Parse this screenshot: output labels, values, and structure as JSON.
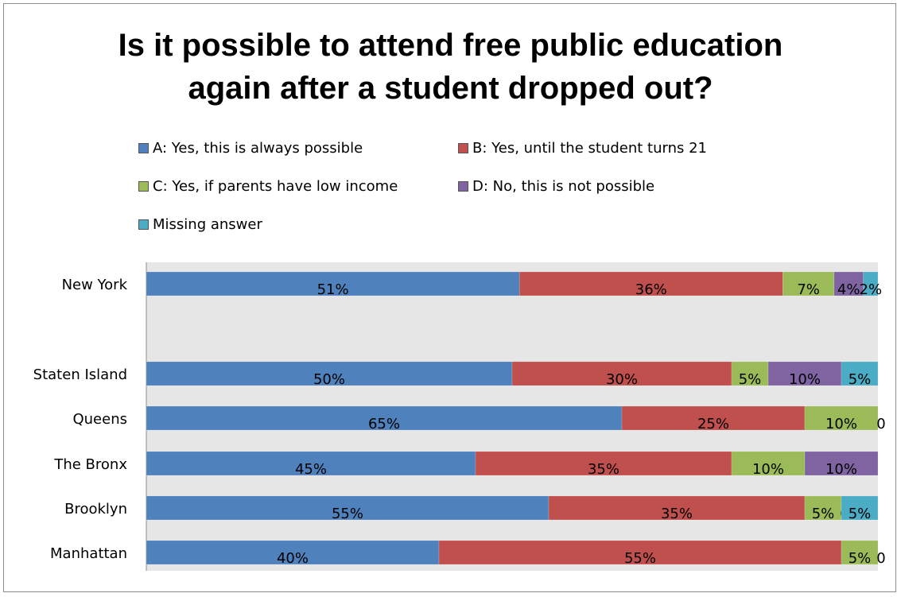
{
  "chart_data": {
    "type": "bar",
    "orientation": "horizontal",
    "stacked": true,
    "normalized_100_percent": true,
    "title": "Is it possible to attend free public education again after a student dropped out?",
    "title_lines": [
      "Is it possible to attend free public education",
      "again after a student dropped out?"
    ],
    "categories": [
      "New York",
      "Staten Island",
      "Queens",
      "The Bronx",
      "Brooklyn",
      "Manhattan"
    ],
    "category_gap_after": [
      "New York"
    ],
    "xlim": [
      0,
      100
    ],
    "grid": false,
    "legend_position": "top",
    "series": [
      {
        "name": "A: Yes, this is always possible",
        "color": "#4f81bd",
        "values": [
          51,
          50,
          65,
          45,
          55,
          40
        ],
        "labels": [
          "51%",
          "50%",
          "65%",
          "45%",
          "55%",
          "40%"
        ]
      },
      {
        "name": "B: Yes, until the student turns 21",
        "color": "#c0504d",
        "values": [
          36,
          30,
          25,
          35,
          35,
          55
        ],
        "labels": [
          "36%",
          "30%",
          "25%",
          "35%",
          "35%",
          "55%"
        ]
      },
      {
        "name": "C: Yes, if parents have low income",
        "color": "#9bbb59",
        "values": [
          7,
          5,
          10,
          10,
          5,
          5
        ],
        "labels": [
          "7%",
          "5%",
          "10%",
          "10%",
          "5%",
          "5%"
        ]
      },
      {
        "name": "D: No, this is not possible",
        "color": "#8064a2",
        "values": [
          4,
          10,
          0,
          10,
          0,
          0
        ],
        "labels": [
          "4%",
          "10%",
          "0",
          "10%",
          "0",
          "0"
        ]
      },
      {
        "name": "Missing answer",
        "color": "#4bacc6",
        "values": [
          2,
          5,
          0,
          0,
          5,
          0
        ],
        "labels": [
          "2%",
          "5%",
          "",
          "",
          "5%",
          ""
        ]
      }
    ]
  }
}
